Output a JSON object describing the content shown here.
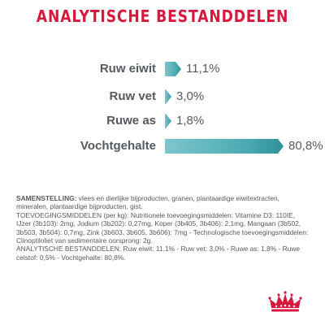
{
  "title": "ANALYTISCHE BESTANDDELEN",
  "accent_color": "#d7193d",
  "bar_color": "#4aa9b1",
  "nutrients": [
    {
      "label": "Ruw eiwit",
      "value_text": "11,1%",
      "value": 11.1
    },
    {
      "label": "Ruw vet",
      "value_text": "3,0%",
      "value": 3.0
    },
    {
      "label": "Ruwe as",
      "value_text": "1,8%",
      "value": 1.8
    },
    {
      "label": "Vochtgehalte",
      "value_text": "80,8%",
      "value": 80.8
    }
  ],
  "composition": {
    "samenstelling_heading": "SAMENSTELLING:",
    "samenstelling_text": " vlees en dierlijke bijproducten, granen, plantaardige eiwitextracten, mineralen, plantaardige bijproducten, gist.",
    "toevoegings_text": "TOEVOEGINGSMIDDELEN (per kg): Nutritionele toevoegingsmiddelen: Vitamine D3: 110IE, IJzer (3b103): 2mg, Jodium (3b202): 0,27mg, Koper (3b405, 3b406): 2,1mg, Mangaan (3b502, 3b503, 3b504): 0,7mg, Zink (3b603, 3b605, 3b606): 7mg - Technologische toevoegingsmiddelen: Clinoptiloliet van sedimentaire oorsprong: 2g.",
    "analytische_text": "ANALYTISCHE BESTANDDELEN: Ruw eiwit: 11,1% - Ruw vet: 3,0% - Ruwe as: 1,8% - Ruwe celstof: 0,5% - Vochtgehalte: 80,8%."
  },
  "logo_icon": "royal-canin-crown-icon"
}
